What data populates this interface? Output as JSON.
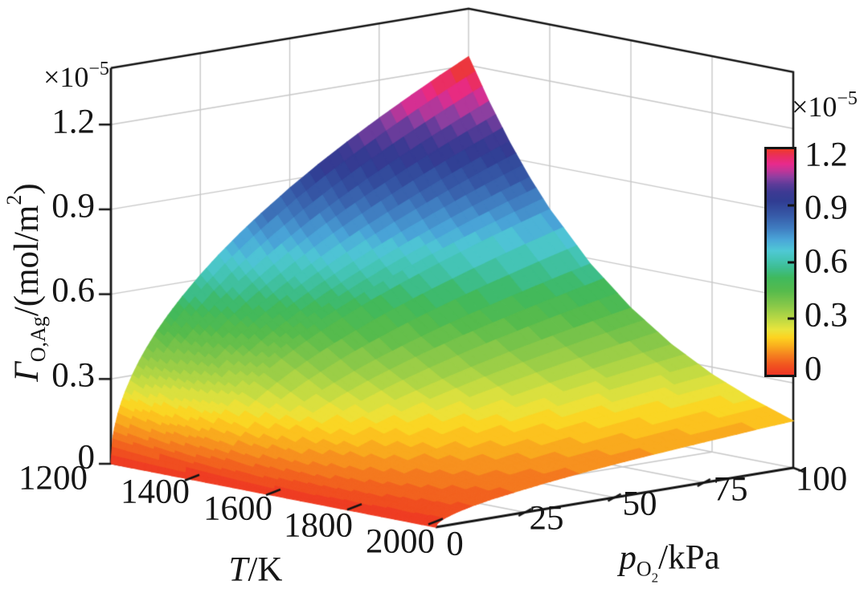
{
  "chart_data": {
    "type": "surface",
    "title": "",
    "style": {
      "background": "#ffffff",
      "grid_color": "#c7c7c7",
      "axis_color": "#141414",
      "text_color": "#161616"
    },
    "axes": {
      "T": {
        "label": "T/K",
        "label_parts": {
          "symbol": "T",
          "rest": "/K"
        },
        "ticks": [
          1200,
          1400,
          1600,
          1800,
          2000
        ],
        "tick_labels": [
          "1200",
          "1400",
          "1600",
          "1800",
          "2000"
        ],
        "range": [
          1200,
          2000
        ]
      },
      "p": {
        "label": "pO2/kPa",
        "label_parts": {
          "symbol": "p",
          "sub": "O",
          "subsub": "2",
          "rest": "/kPa"
        },
        "ticks": [
          0,
          25,
          50,
          75,
          100
        ],
        "tick_labels": [
          "0",
          "25",
          "50",
          "75",
          "100"
        ],
        "range": [
          0,
          100
        ]
      },
      "z": {
        "label": "Γ O,Ag /(mol/m²)",
        "label_parts": {
          "symbol": "Γ",
          "sub": "O,Ag",
          "rest": "/(mol/m",
          "sup": "2",
          "close": ")"
        },
        "scale_parts": {
          "base": "×10",
          "exp": "−5"
        },
        "ticks": [
          0,
          0.3,
          0.6,
          0.9,
          1.2
        ],
        "tick_labels": [
          "0",
          "0.3",
          "0.6",
          "0.9",
          "1.2"
        ],
        "range": [
          0,
          1.4
        ]
      }
    },
    "colorbar": {
      "range": [
        0,
        1.2
      ],
      "ticks": [
        0,
        0.3,
        0.6,
        0.9,
        1.2
      ],
      "tick_labels": [
        "1.2",
        "0.9",
        "0.6",
        "0.3",
        "0"
      ],
      "scale_parts": {
        "base": "×10",
        "exp": "−5"
      }
    },
    "colormap": [
      [
        0.0,
        "#ee3424"
      ],
      [
        0.045,
        "#f1561f"
      ],
      [
        0.09,
        "#f5831f"
      ],
      [
        0.13,
        "#fab01e"
      ],
      [
        0.165,
        "#fdd320"
      ],
      [
        0.2,
        "#e9e43c"
      ],
      [
        0.25,
        "#b9d844"
      ],
      [
        0.31,
        "#85c749"
      ],
      [
        0.37,
        "#57bb4c"
      ],
      [
        0.43,
        "#3fb95d"
      ],
      [
        0.47,
        "#3dbd8d"
      ],
      [
        0.51,
        "#44c4b4"
      ],
      [
        0.55,
        "#4fc8d5"
      ],
      [
        0.6,
        "#4aa5d8"
      ],
      [
        0.65,
        "#3f7cc0"
      ],
      [
        0.71,
        "#3658a6"
      ],
      [
        0.77,
        "#303c92"
      ],
      [
        0.81,
        "#3d3a93"
      ],
      [
        0.845,
        "#5e3b99"
      ],
      [
        0.875,
        "#8c3fa0"
      ],
      [
        0.905,
        "#c03598"
      ],
      [
        0.935,
        "#e82a8c"
      ],
      [
        0.97,
        "#ea2e5e"
      ],
      [
        1.0,
        "#ed3b2a"
      ]
    ],
    "surface": {
      "T": [
        1200,
        1250,
        1300,
        1350,
        1400,
        1500,
        1600,
        1700,
        1800,
        1900,
        2000
      ],
      "p": [
        0,
        0.5,
        1,
        2,
        3,
        4,
        6,
        8,
        10,
        13,
        16,
        20,
        25,
        30,
        36,
        42,
        50,
        58,
        66,
        75,
        84,
        92,
        100
      ],
      "gamma_1e5": [
        [
          0,
          0.087,
          0.123,
          0.174,
          0.213,
          0.246,
          0.301,
          0.348,
          0.389,
          0.444,
          0.492,
          0.55,
          0.615,
          0.674,
          0.738,
          0.797,
          0.87,
          0.937,
          0.999,
          1.065,
          1.127,
          1.18,
          1.23
        ],
        [
          0,
          0.077,
          0.109,
          0.154,
          0.188,
          0.217,
          0.266,
          0.307,
          0.343,
          0.392,
          0.434,
          0.485,
          0.543,
          0.595,
          0.651,
          0.703,
          0.768,
          0.827,
          0.882,
          0.94,
          0.995,
          1.041,
          1.086
        ],
        [
          0,
          0.068,
          0.096,
          0.136,
          0.166,
          0.192,
          0.234,
          0.271,
          0.303,
          0.346,
          0.383,
          0.428,
          0.479,
          0.525,
          0.575,
          0.621,
          0.678,
          0.73,
          0.778,
          0.829,
          0.878,
          0.919,
          0.958
        ],
        [
          0,
          0.06,
          0.085,
          0.12,
          0.146,
          0.169,
          0.207,
          0.239,
          0.267,
          0.305,
          0.338,
          0.378,
          0.423,
          0.463,
          0.507,
          0.548,
          0.598,
          0.644,
          0.687,
          0.732,
          0.775,
          0.811,
          0.845
        ],
        [
          0,
          0.053,
          0.075,
          0.106,
          0.129,
          0.149,
          0.183,
          0.211,
          0.236,
          0.269,
          0.298,
          0.334,
          0.373,
          0.409,
          0.448,
          0.483,
          0.528,
          0.568,
          0.606,
          0.646,
          0.684,
          0.716,
          0.746
        ],
        [
          0,
          0.041,
          0.058,
          0.082,
          0.101,
          0.116,
          0.142,
          0.164,
          0.184,
          0.21,
          0.232,
          0.26,
          0.291,
          0.318,
          0.349,
          0.377,
          0.411,
          0.443,
          0.472,
          0.503,
          0.532,
          0.557,
          0.581
        ],
        [
          0,
          0.032,
          0.045,
          0.064,
          0.078,
          0.091,
          0.111,
          0.128,
          0.143,
          0.163,
          0.181,
          0.202,
          0.226,
          0.248,
          0.272,
          0.293,
          0.32,
          0.345,
          0.368,
          0.392,
          0.415,
          0.434,
          0.453
        ],
        [
          0,
          0.025,
          0.035,
          0.05,
          0.061,
          0.07,
          0.086,
          0.1,
          0.111,
          0.127,
          0.141,
          0.158,
          0.176,
          0.193,
          0.211,
          0.228,
          0.249,
          0.268,
          0.286,
          0.305,
          0.323,
          0.338,
          0.352
        ],
        [
          0,
          0.019,
          0.027,
          0.039,
          0.048,
          0.055,
          0.067,
          0.078,
          0.087,
          0.099,
          0.11,
          0.123,
          0.137,
          0.15,
          0.165,
          0.178,
          0.194,
          0.209,
          0.223,
          0.238,
          0.251,
          0.263,
          0.274
        ],
        [
          0,
          0.015,
          0.021,
          0.03,
          0.037,
          0.043,
          0.052,
          0.06,
          0.068,
          0.077,
          0.086,
          0.096,
          0.107,
          0.117,
          0.128,
          0.139,
          0.151,
          0.163,
          0.174,
          0.185,
          0.196,
          0.205,
          0.214
        ],
        [
          0,
          0.012,
          0.017,
          0.024,
          0.029,
          0.033,
          0.041,
          0.047,
          0.053,
          0.06,
          0.067,
          0.074,
          0.083,
          0.091,
          0.1,
          0.108,
          0.118,
          0.127,
          0.135,
          0.144,
          0.152,
          0.16,
          0.166
        ]
      ]
    }
  }
}
